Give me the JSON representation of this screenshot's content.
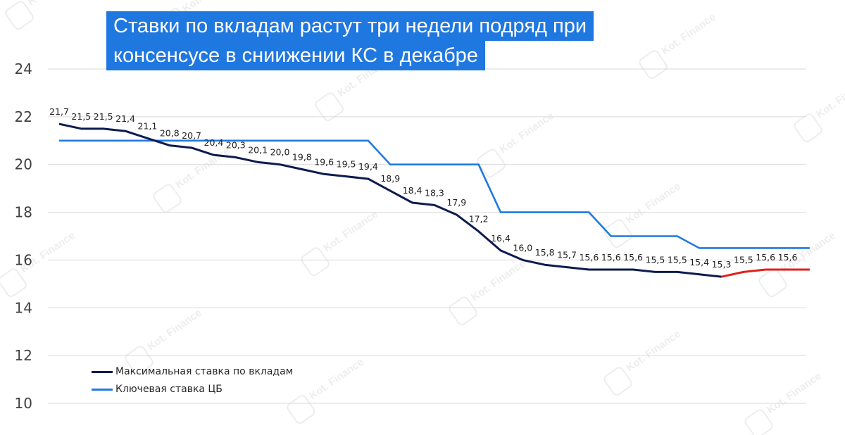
{
  "title_lines": [
    "Ставки по вкладам растут три недели подряд при",
    "консенсусе в сниижении КС в декабре"
  ],
  "legend": {
    "max_rate": "Максимальная ставка по вкладам",
    "key_rate": "Ключевая ставка ЦБ"
  },
  "watermark": "Kot. Finance",
  "colors": {
    "max_rate": "#0d1b4f",
    "key_rate": "#1f7adf",
    "recent_increase": "#e0201c",
    "title_bg": "#1f77e0",
    "grid": "#d9d9d9"
  },
  "chart_data": {
    "type": "line",
    "x": [
      1,
      2,
      3,
      4,
      5,
      6,
      7,
      8,
      9,
      10,
      11,
      12,
      13,
      14,
      15,
      16,
      17,
      18,
      19,
      20,
      21,
      22,
      23,
      24,
      25,
      26,
      27,
      28,
      29,
      30,
      31,
      32,
      33,
      34,
      35
    ],
    "ylim": [
      10,
      24
    ],
    "yticks": [
      "10",
      "12",
      "14",
      "16",
      "18",
      "20",
      "22",
      "24"
    ],
    "grid": "horizontal",
    "legend_position": "bottom-left",
    "series": [
      {
        "name": "Максимальная ставка по вкладам",
        "values": [
          21.7,
          21.5,
          21.5,
          21.4,
          21.1,
          20.8,
          20.7,
          20.4,
          20.3,
          20.1,
          20.0,
          19.8,
          19.6,
          19.5,
          19.4,
          18.9,
          18.4,
          18.3,
          17.9,
          17.2,
          16.4,
          16.0,
          15.8,
          15.7,
          15.6,
          15.6,
          15.6,
          15.5,
          15.5,
          15.4,
          15.3,
          15.5,
          15.6,
          15.6,
          15.6
        ],
        "labels": [
          "21,7",
          "21,5",
          "21,5",
          "21,4",
          "21,1",
          "20,8",
          "20,7",
          "20,4",
          "20,3",
          "20,1",
          "20,0",
          "19,8",
          "19,6",
          "19,5",
          "19,4",
          "18,9",
          "18,4",
          "18,3",
          "17,9",
          "17,2",
          "16,4",
          "16,0",
          "15,8",
          "15,7",
          "15,6",
          "15,6",
          "15,6",
          "15,5",
          "15,5",
          "15,4",
          "15,3",
          "15,5",
          "15,6",
          "15,6",
          ""
        ],
        "highlight_from_index": 30
      },
      {
        "name": "Ключевая ставка ЦБ",
        "values": [
          21,
          21,
          21,
          21,
          21,
          21,
          21,
          21,
          21,
          21,
          21,
          21,
          21,
          21,
          21,
          20,
          20,
          20,
          20,
          20,
          18,
          18,
          18,
          18,
          18,
          17,
          17,
          17,
          17,
          16.5,
          16.5,
          16.5,
          16.5,
          16.5,
          16.5
        ]
      }
    ]
  }
}
